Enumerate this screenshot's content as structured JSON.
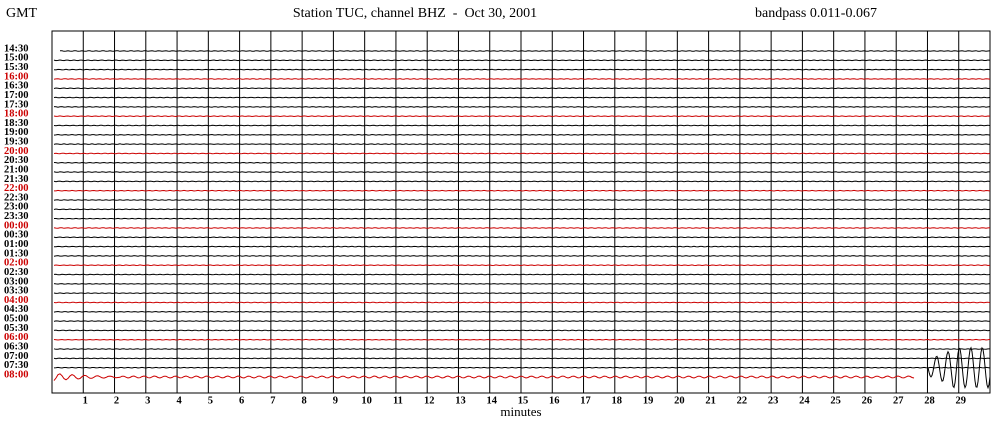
{
  "header": {
    "left": "GMT",
    "title": "Station TUC, channel BHZ  -  Oct 30, 2001",
    "right": "bandpass 0.011-0.067"
  },
  "rows": [
    {
      "label": "14:30",
      "color": "#000000"
    },
    {
      "label": "15:00",
      "color": "#000000"
    },
    {
      "label": "15:30",
      "color": "#000000"
    },
    {
      "label": "16:00",
      "color": "#cc0000"
    },
    {
      "label": "16:30",
      "color": "#000000"
    },
    {
      "label": "17:00",
      "color": "#000000"
    },
    {
      "label": "17:30",
      "color": "#000000"
    },
    {
      "label": "18:00",
      "color": "#cc0000"
    },
    {
      "label": "18:30",
      "color": "#000000"
    },
    {
      "label": "19:00",
      "color": "#000000"
    },
    {
      "label": "19:30",
      "color": "#000000"
    },
    {
      "label": "20:00",
      "color": "#cc0000"
    },
    {
      "label": "20:30",
      "color": "#000000"
    },
    {
      "label": "21:00",
      "color": "#000000"
    },
    {
      "label": "21:30",
      "color": "#000000"
    },
    {
      "label": "22:00",
      "color": "#cc0000"
    },
    {
      "label": "22:30",
      "color": "#000000"
    },
    {
      "label": "23:00",
      "color": "#000000"
    },
    {
      "label": "23:30",
      "color": "#000000"
    },
    {
      "label": "00:00",
      "color": "#cc0000"
    },
    {
      "label": "00:30",
      "color": "#000000"
    },
    {
      "label": "01:00",
      "color": "#000000"
    },
    {
      "label": "01:30",
      "color": "#000000"
    },
    {
      "label": "02:00",
      "color": "#cc0000"
    },
    {
      "label": "02:30",
      "color": "#000000"
    },
    {
      "label": "03:00",
      "color": "#000000"
    },
    {
      "label": "03:30",
      "color": "#000000"
    },
    {
      "label": "04:00",
      "color": "#cc0000"
    },
    {
      "label": "04:30",
      "color": "#000000"
    },
    {
      "label": "05:00",
      "color": "#000000"
    },
    {
      "label": "05:30",
      "color": "#000000"
    },
    {
      "label": "06:00",
      "color": "#cc0000"
    },
    {
      "label": "06:30",
      "color": "#000000"
    },
    {
      "label": "07:00",
      "color": "#000000"
    },
    {
      "label": "07:30",
      "color": "#000000"
    },
    {
      "label": "08:00",
      "color": "#cc0000"
    }
  ],
  "x_axis": {
    "label": "minutes",
    "ticks": [
      1,
      2,
      3,
      4,
      5,
      6,
      7,
      8,
      9,
      10,
      11,
      12,
      13,
      14,
      15,
      16,
      17,
      18,
      19,
      20,
      21,
      22,
      23,
      24,
      25,
      26,
      27,
      28,
      29
    ]
  }
}
